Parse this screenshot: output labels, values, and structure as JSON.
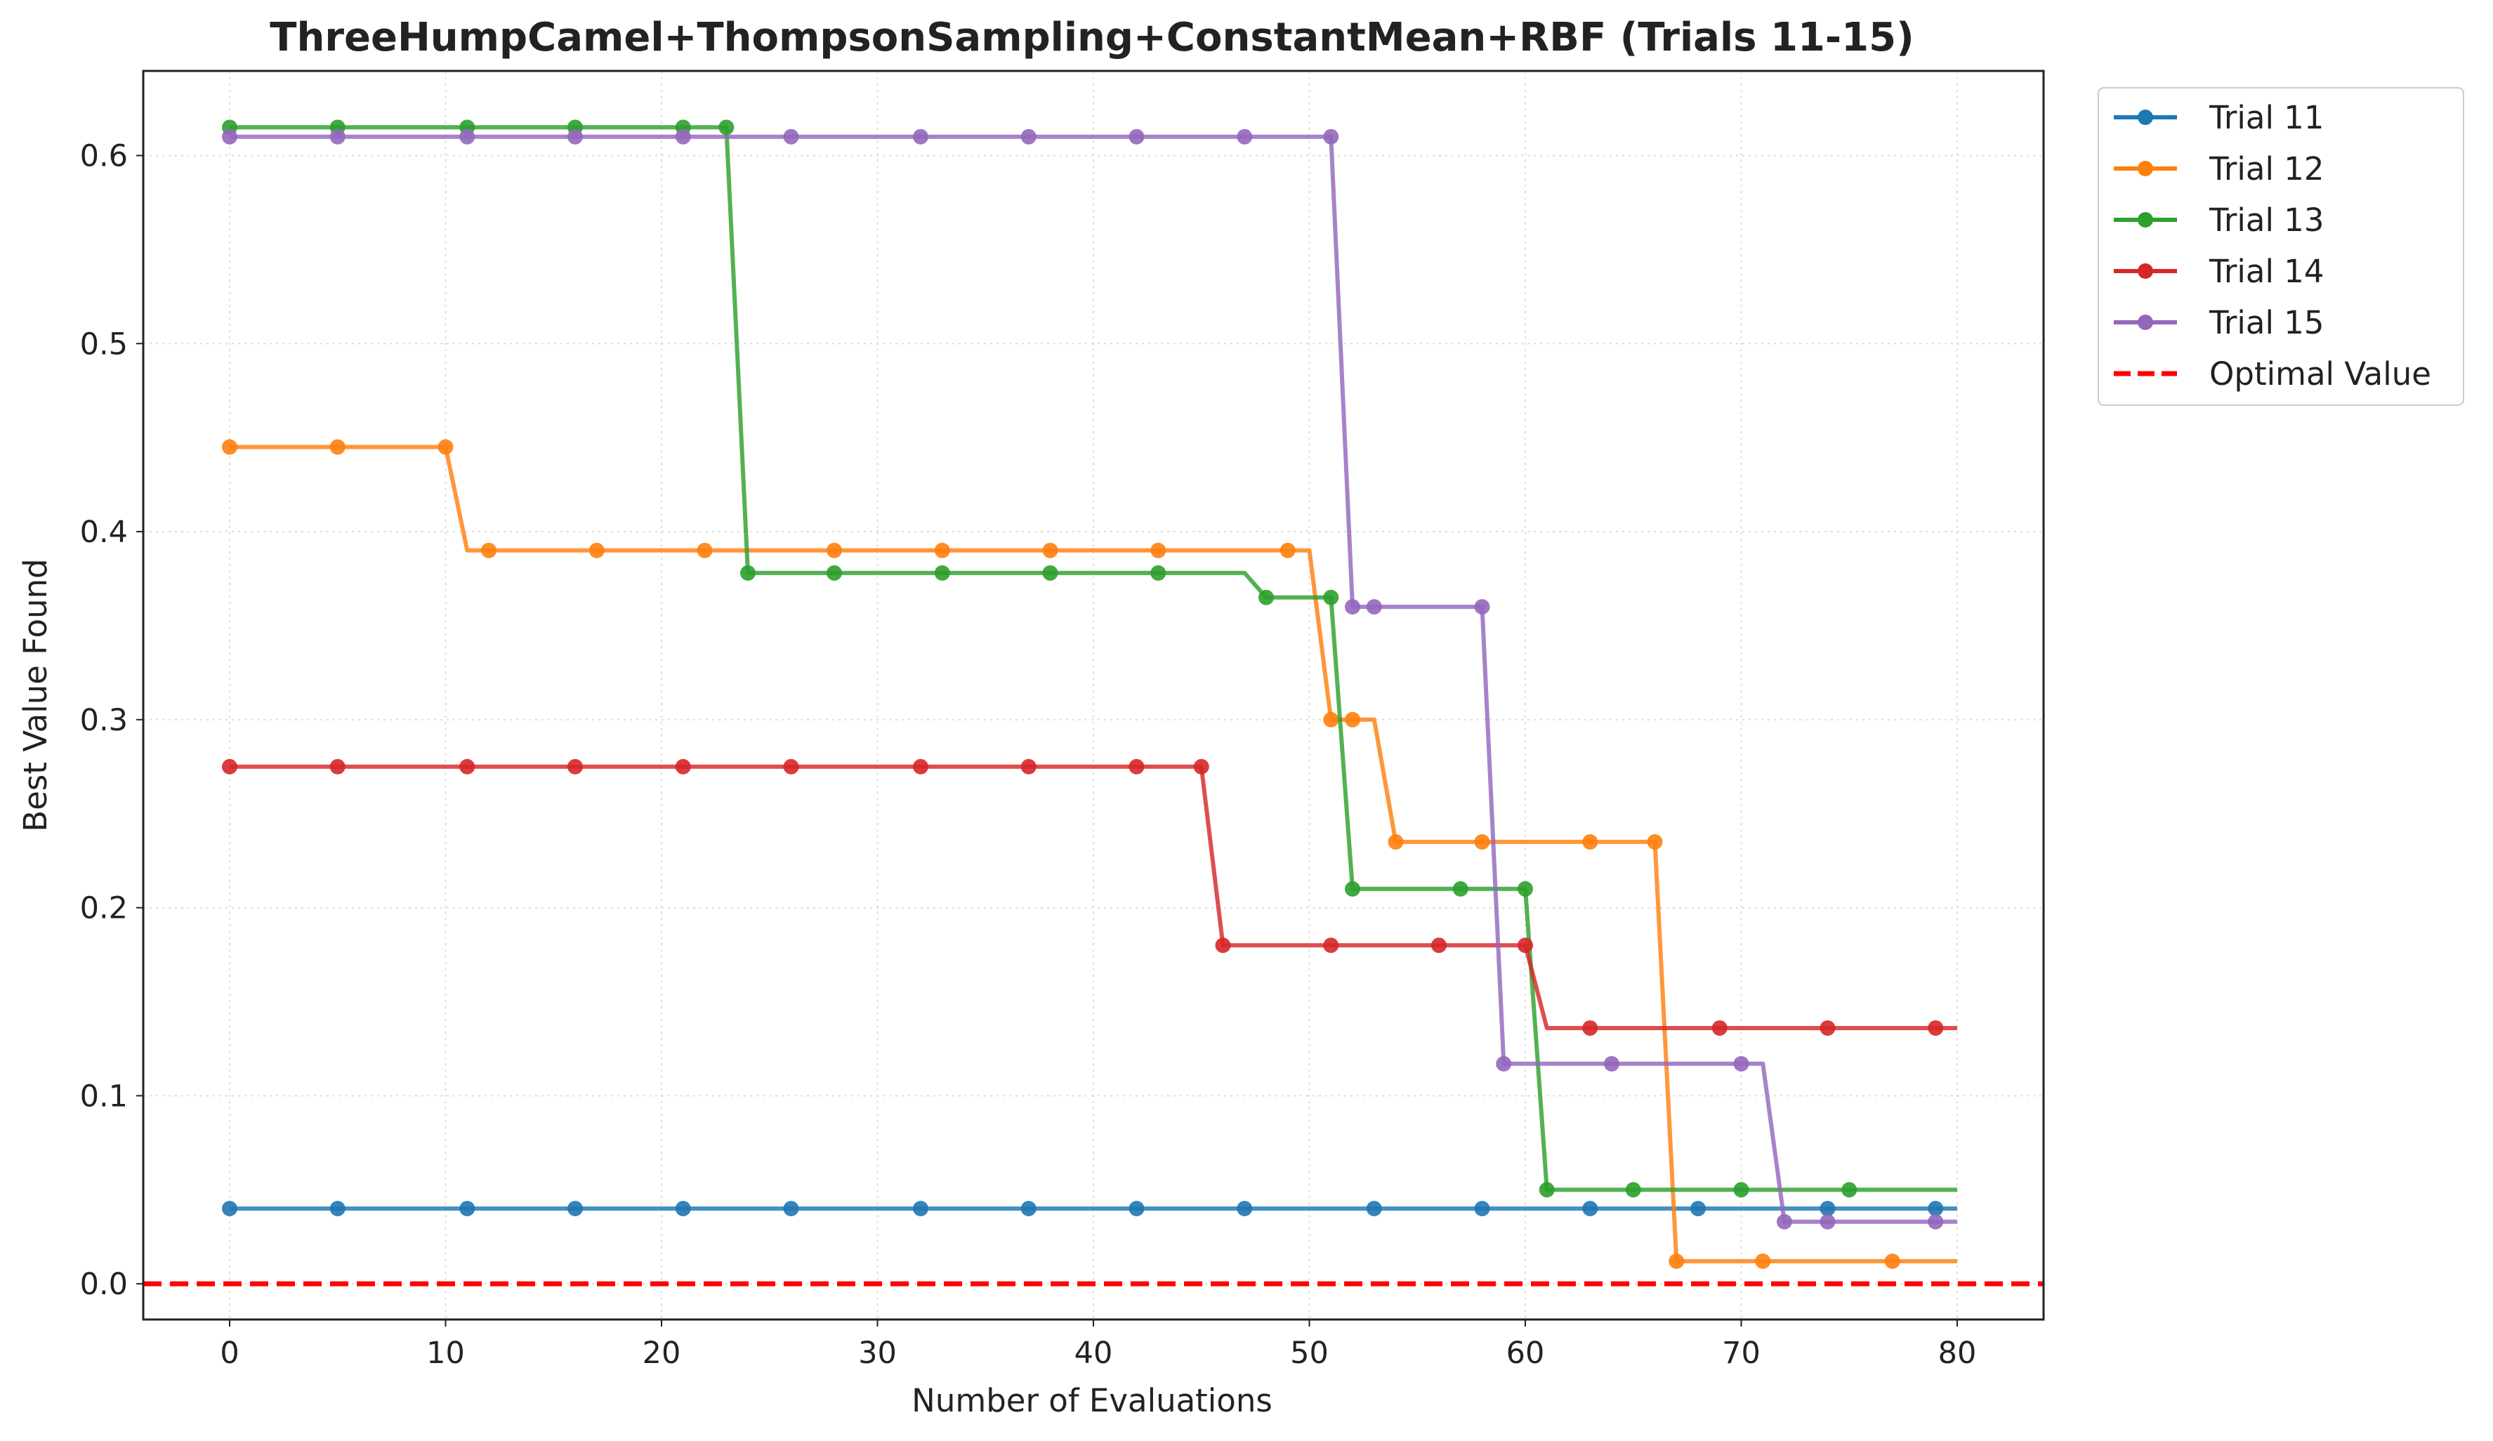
{
  "chart_data": {
    "type": "line",
    "title": "ThreeHumpCamel+ThompsonSampling+ConstantMean+RBF (Trials 11-15)",
    "xlabel": "Number of Evaluations",
    "ylabel": "Best Value Found",
    "xlim": [
      -4,
      84
    ],
    "ylim": [
      -0.019,
      0.645
    ],
    "xticks": [
      0,
      10,
      20,
      30,
      40,
      50,
      60,
      70,
      80
    ],
    "yticks": [
      0.0,
      0.1,
      0.2,
      0.3,
      0.4,
      0.5,
      0.6
    ],
    "ytick_labels": [
      "0.0",
      "0.1",
      "0.2",
      "0.3",
      "0.4",
      "0.5",
      "0.6"
    ],
    "grid": true,
    "legend_position": "outside-top-right",
    "x_range": [
      0,
      80
    ],
    "series": [
      {
        "name": "Trial 11",
        "color": "#1f77b4",
        "steps": [
          [
            0,
            0.04
          ]
        ],
        "markers": [
          0,
          5,
          11,
          16,
          21,
          26,
          32,
          37,
          42,
          47,
          53,
          58,
          63,
          68,
          74,
          79
        ]
      },
      {
        "name": "Trial 12",
        "color": "#ff7f0e",
        "steps": [
          [
            0,
            0.445
          ],
          [
            11,
            0.39
          ],
          [
            51,
            0.3
          ],
          [
            54,
            0.235
          ],
          [
            67,
            0.012
          ]
        ],
        "markers": [
          0,
          5,
          10,
          12,
          17,
          22,
          28,
          33,
          38,
          43,
          49,
          51,
          52,
          54,
          58,
          63,
          66,
          67,
          71,
          77
        ]
      },
      {
        "name": "Trial 13",
        "color": "#2ca02c",
        "steps": [
          [
            0,
            0.615
          ],
          [
            24,
            0.378
          ],
          [
            48,
            0.365
          ],
          [
            52,
            0.21
          ],
          [
            61,
            0.05
          ]
        ],
        "markers": [
          0,
          5,
          11,
          16,
          21,
          23,
          24,
          28,
          33,
          38,
          43,
          48,
          51,
          52,
          57,
          60,
          61,
          65,
          70,
          75
        ]
      },
      {
        "name": "Trial 14",
        "color": "#d62728",
        "steps": [
          [
            0,
            0.275
          ],
          [
            46,
            0.18
          ],
          [
            61,
            0.136
          ]
        ],
        "markers": [
          0,
          5,
          11,
          16,
          21,
          26,
          32,
          37,
          42,
          45,
          46,
          51,
          56,
          60,
          63,
          69,
          74,
          79
        ]
      },
      {
        "name": "Trial 15",
        "color": "#9467bd",
        "steps": [
          [
            0,
            0.61
          ],
          [
            52,
            0.36
          ],
          [
            59,
            0.117
          ],
          [
            72,
            0.033
          ]
        ],
        "markers": [
          0,
          5,
          11,
          16,
          21,
          26,
          32,
          37,
          42,
          47,
          51,
          52,
          53,
          58,
          59,
          64,
          70,
          72,
          74,
          79
        ]
      }
    ],
    "reference_line": {
      "name": "Optimal Value",
      "y": 0.0,
      "color": "#ff0000",
      "style": "dashed"
    }
  }
}
